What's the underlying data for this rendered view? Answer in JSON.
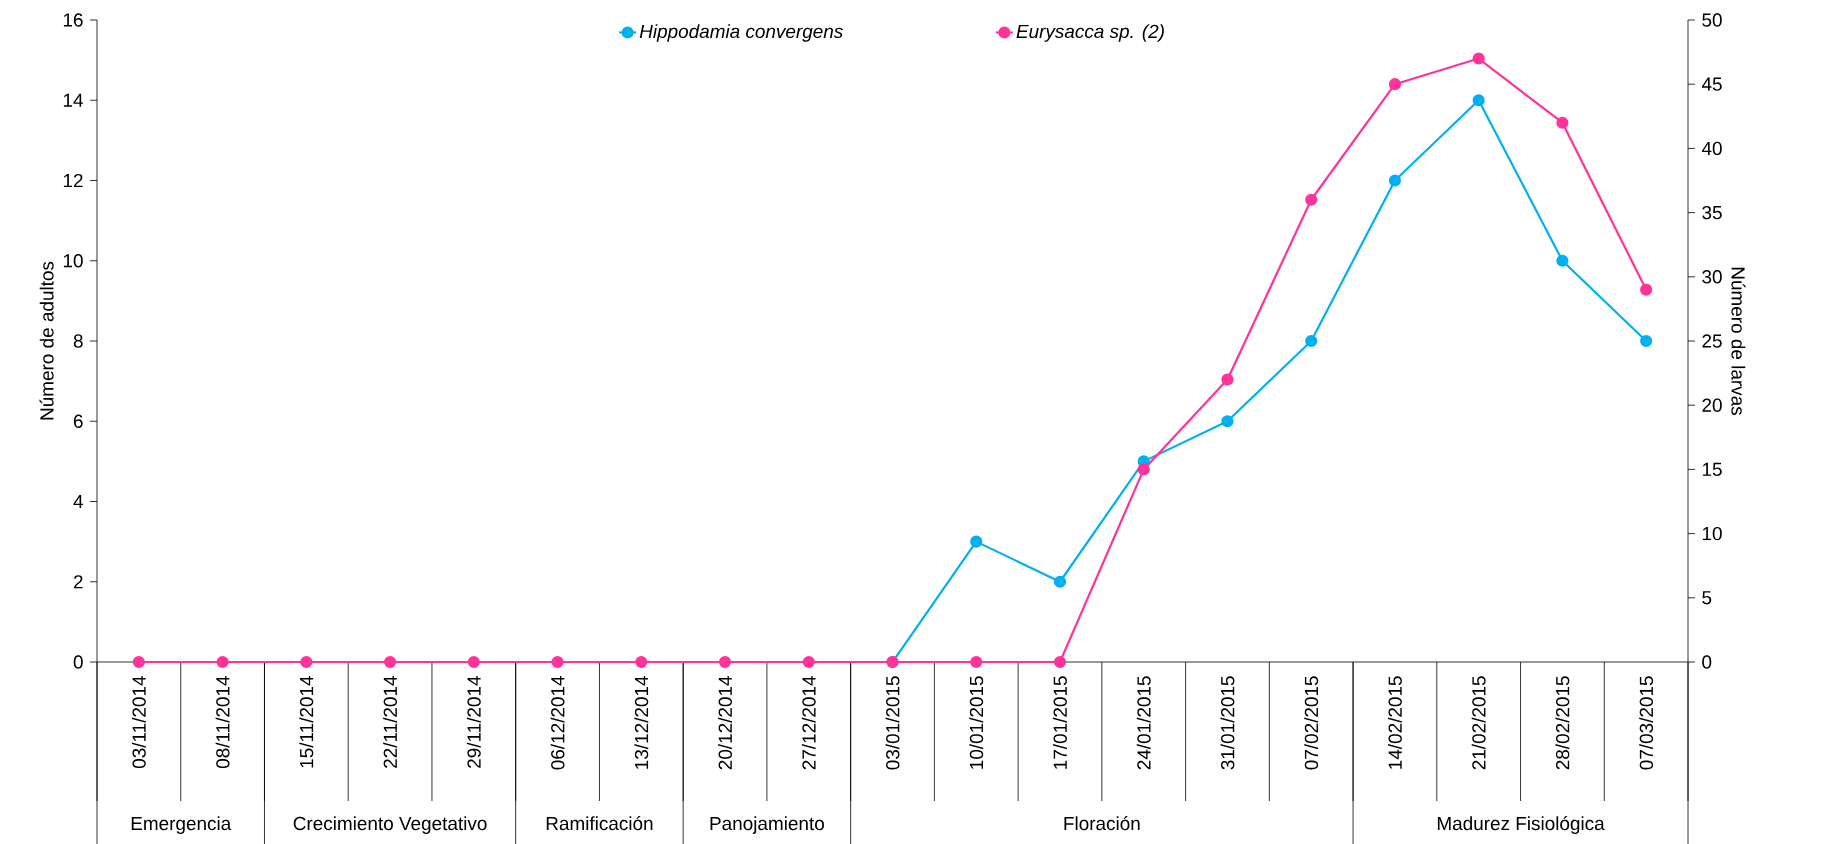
{
  "chart_data": {
    "type": "line",
    "categories": [
      "03/11/2014",
      "08/11/2014",
      "15/11/2014",
      "22/11/2014",
      "29/11/2014",
      "06/12/2014",
      "13/12/2014",
      "20/12/2014",
      "27/12/2014",
      "03/01/2015",
      "10/01/2015",
      "17/01/2015",
      "24/01/2015",
      "31/01/2015",
      "07/02/2015",
      "14/02/2015",
      "21/02/2015",
      "28/02/2015",
      "07/03/2015"
    ],
    "series": [
      {
        "name": "Hippodamia convergens",
        "color": "#00b0f0",
        "values": [
          null,
          null,
          null,
          null,
          null,
          null,
          null,
          null,
          null,
          0,
          3,
          2,
          5,
          6,
          8,
          12,
          14,
          10,
          8
        ]
      },
      {
        "name": "Eurysacca sp. (2)",
        "color": "#ff3399",
        "axis": "y2",
        "values": [
          0,
          0,
          0,
          0,
          0,
          0,
          0,
          0,
          0,
          0,
          0,
          0,
          15,
          22,
          36,
          45,
          47,
          42,
          29
        ]
      }
    ],
    "ylabel": "Número de adultos",
    "y2label": "Número de larvas",
    "ylim": [
      0,
      16
    ],
    "yticks": [
      0,
      2,
      4,
      6,
      8,
      10,
      12,
      14,
      16
    ],
    "y2lim": [
      0,
      50
    ],
    "y2ticks": [
      0,
      5,
      10,
      15,
      20,
      25,
      30,
      35,
      40,
      45,
      50
    ],
    "annotations": [
      "Emergencia",
      "Crecimiento Vegetativo",
      "Ramificación",
      "Panojamiento",
      "Floración",
      "Madurez Fisiológica"
    ],
    "legend": "top",
    "grid": false,
    "marker": "circle",
    "line_style": "solid"
  }
}
